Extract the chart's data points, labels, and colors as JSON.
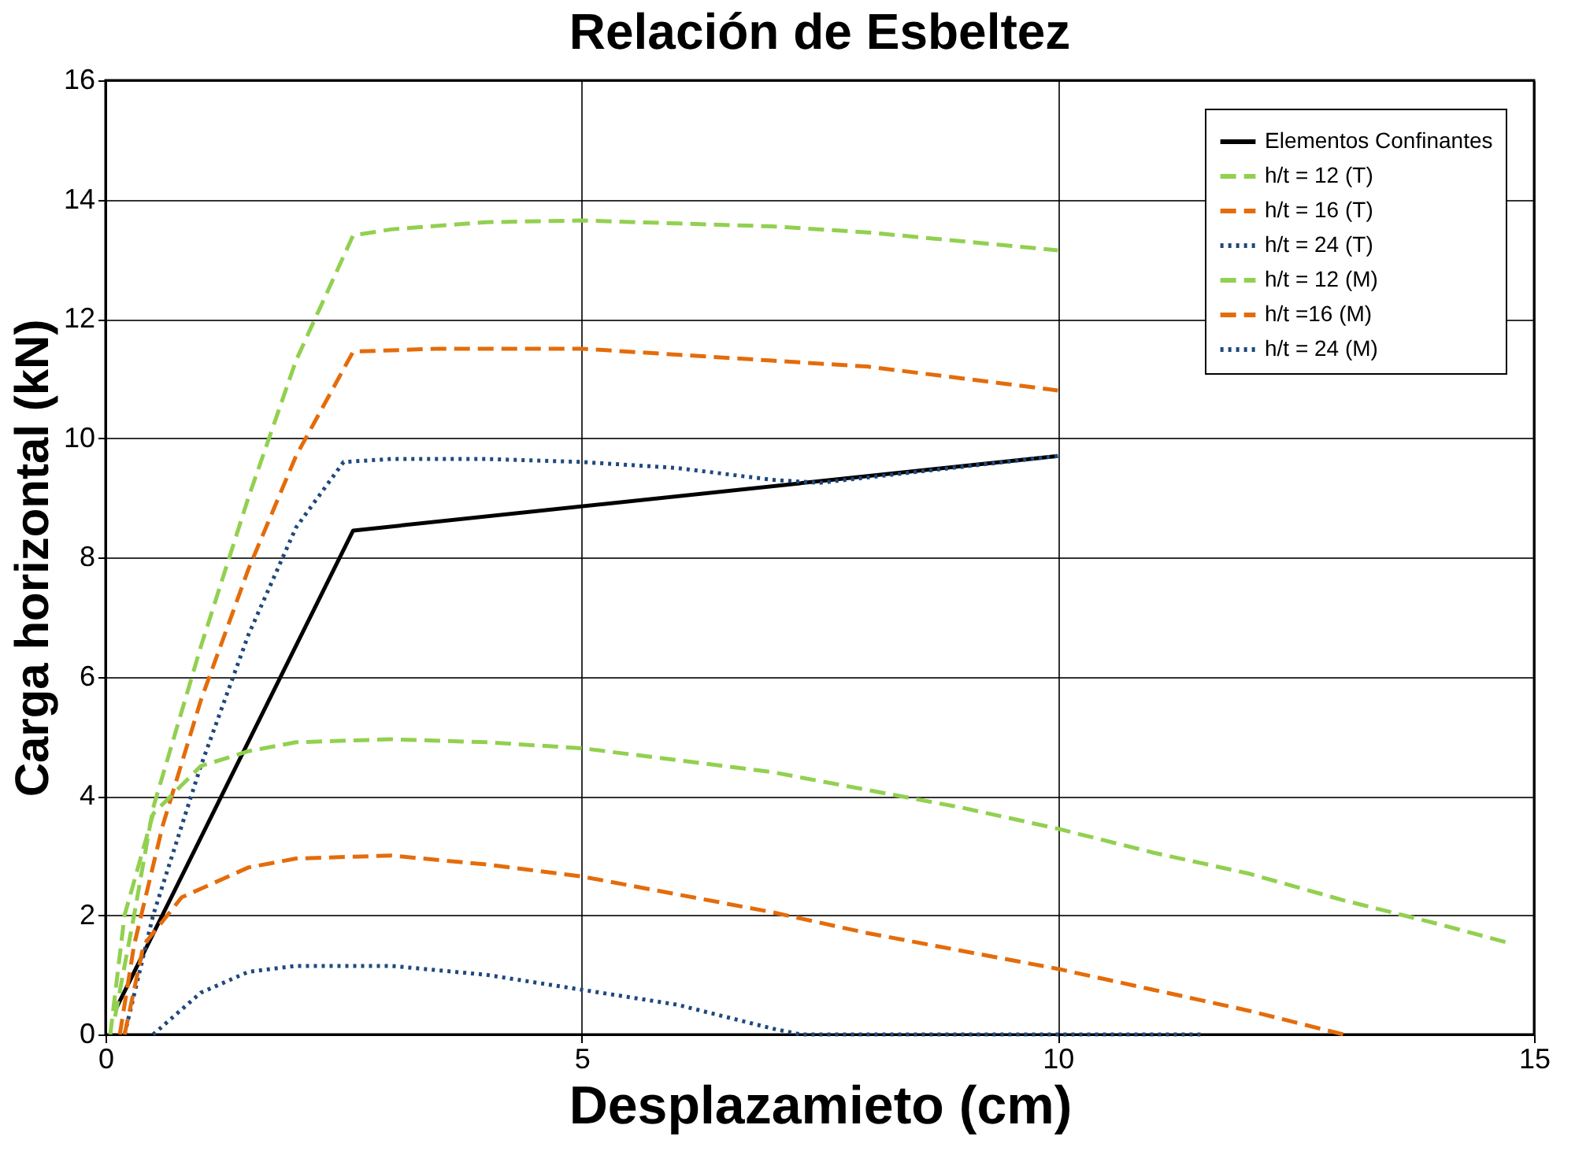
{
  "chart_data": {
    "type": "line",
    "title": "Relación de Esbeltez",
    "xlabel": "Desplazamieto (cm)",
    "ylabel": "Carga horizontal (kN)",
    "xlim": [
      0,
      15
    ],
    "xticks": [
      0,
      5,
      10,
      15
    ],
    "ylim": [
      0,
      16
    ],
    "yticks": [
      0,
      2,
      4,
      6,
      8,
      10,
      12,
      14,
      16
    ],
    "grid": true,
    "legend": "top right",
    "marker": "none",
    "series": [
      {
        "name": "Elementos Confinantes",
        "color": "#000000",
        "line_style": "solid",
        "x": [
          0.1,
          2.6,
          10
        ],
        "values": [
          0.4,
          8.45,
          9.7
        ]
      },
      {
        "name": "h/t = 12 (T)",
        "color": "#92d050",
        "line_style": "dashed",
        "x": [
          0.1,
          0.3,
          0.5,
          1,
          1.5,
          2,
          2.6,
          3,
          4,
          5,
          6,
          7,
          8,
          9,
          10
        ],
        "values": [
          0.3,
          2,
          3.8,
          6.5,
          9,
          11.3,
          13.4,
          13.5,
          13.62,
          13.65,
          13.6,
          13.55,
          13.45,
          13.3,
          13.15
        ]
      },
      {
        "name": "h/t = 16 (T)",
        "color": "#e46c0a",
        "line_style": "dashed",
        "x": [
          0.15,
          0.3,
          0.6,
          1,
          1.5,
          2,
          2.6,
          3.5,
          5,
          6,
          7,
          8,
          9,
          10
        ],
        "values": [
          0,
          1.5,
          3.5,
          5.6,
          7.8,
          9.7,
          11.45,
          11.5,
          11.5,
          11.4,
          11.3,
          11.2,
          11.0,
          10.8
        ]
      },
      {
        "name": "h/t = 24 (T)",
        "color": "#1f497d",
        "line_style": "dotted",
        "x": [
          0.2,
          0.5,
          1,
          1.5,
          2,
          2.5,
          3,
          4,
          5,
          6,
          7,
          7.5,
          10
        ],
        "values": [
          0,
          2,
          4.5,
          6.7,
          8.5,
          9.6,
          9.65,
          9.65,
          9.6,
          9.5,
          9.3,
          9.25,
          9.7
        ]
      },
      {
        "name": "h/t = 12 (M)",
        "color": "#92d050",
        "line_style": "dashed",
        "x": [
          0.05,
          0.2,
          0.5,
          1,
          1.5,
          2,
          3,
          4,
          5,
          6,
          7,
          8,
          9,
          10,
          11,
          12,
          13,
          14,
          14.7
        ],
        "values": [
          0,
          2,
          3.7,
          4.5,
          4.75,
          4.9,
          4.95,
          4.9,
          4.8,
          4.6,
          4.4,
          4.1,
          3.8,
          3.45,
          3.05,
          2.7,
          2.25,
          1.85,
          1.55
        ]
      },
      {
        "name": "h/t =16 (M)",
        "color": "#e46c0a",
        "line_style": "dashed",
        "x": [
          0.2,
          0.4,
          0.8,
          1.5,
          2,
          3,
          4,
          5,
          6,
          7,
          8,
          9,
          10,
          11,
          12,
          12.5,
          13
        ],
        "values": [
          0,
          1.5,
          2.3,
          2.8,
          2.95,
          3,
          2.85,
          2.65,
          2.35,
          2.05,
          1.7,
          1.4,
          1.1,
          0.75,
          0.4,
          0.2,
          0
        ]
      },
      {
        "name": "h/t = 24 (M)",
        "color": "#1f497d",
        "line_style": "dotted",
        "x": [
          0.5,
          1,
          1.5,
          2,
          3,
          4,
          5,
          6,
          7,
          7.3,
          10,
          11.5
        ],
        "values": [
          0,
          0.7,
          1.05,
          1.15,
          1.15,
          1.0,
          0.75,
          0.5,
          0.1,
          0,
          0,
          0
        ]
      }
    ]
  }
}
